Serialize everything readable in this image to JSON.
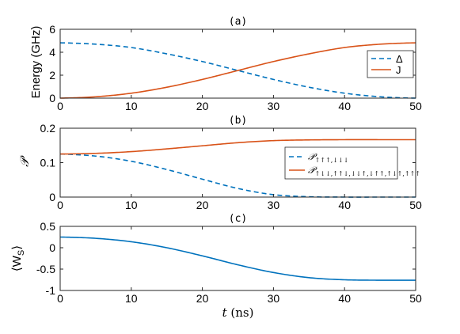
{
  "chart_data": [
    {
      "type": "line",
      "panel": "(a)",
      "title": "(a)",
      "ylabel": "Energy (GHz)",
      "xlim": [
        0,
        50
      ],
      "ylim": [
        0,
        6
      ],
      "xticks": [
        0,
        10,
        20,
        30,
        40,
        50
      ],
      "yticks": [
        0,
        2,
        4,
        6
      ],
      "legend_position": "bottom-right",
      "colors": {
        "blue": "#0072BD",
        "orange": "#D95319"
      },
      "series": [
        {
          "name": "Δ",
          "style": "dashed",
          "color": "#0072BD",
          "x": [
            0,
            5,
            10,
            15,
            20,
            25,
            30,
            35,
            40,
            45,
            50
          ],
          "y": [
            4.82,
            4.7,
            4.41,
            3.86,
            3.19,
            2.41,
            1.63,
            0.95,
            0.43,
            0.12,
            0.0
          ]
        },
        {
          "name": "J",
          "style": "solid",
          "color": "#D95319",
          "x": [
            0,
            5,
            10,
            15,
            20,
            25,
            30,
            35,
            40,
            45,
            50
          ],
          "y": [
            0.0,
            0.12,
            0.43,
            0.95,
            1.63,
            2.41,
            3.19,
            3.86,
            4.41,
            4.7,
            4.82
          ]
        }
      ]
    },
    {
      "type": "line",
      "panel": "(b)",
      "title": "(b)",
      "ylabel": "𝒫",
      "xlim": [
        0,
        50
      ],
      "ylim": [
        0,
        0.2
      ],
      "xticks": [
        0,
        10,
        20,
        30,
        40,
        50
      ],
      "yticks": [
        0,
        0.1,
        0.2
      ],
      "ytick_labels": [
        "0",
        "0.1",
        "0.2"
      ],
      "legend_position": "right",
      "series": [
        {
          "name": "𝒫↑↑↑,↓↓↓",
          "style": "dashed",
          "color": "#0072BD",
          "x": [
            0,
            5,
            10,
            15,
            20,
            25,
            30,
            35,
            40,
            45,
            50
          ],
          "y": [
            0.125,
            0.119,
            0.104,
            0.08,
            0.052,
            0.025,
            0.007,
            0.001,
            0.0,
            0.0,
            0.0
          ]
        },
        {
          "name": "𝒫↑↓↓,↑↑↓,↓↓↑,↓↑↑,↑↓↑,↑↑↑",
          "style": "solid",
          "color": "#D95319",
          "x": [
            0,
            5,
            10,
            15,
            20,
            25,
            30,
            35,
            40,
            45,
            50
          ],
          "y": [
            0.125,
            0.127,
            0.132,
            0.14,
            0.149,
            0.158,
            0.164,
            0.166,
            0.1667,
            0.1667,
            0.1667
          ]
        }
      ]
    },
    {
      "type": "line",
      "panel": "(c)",
      "title": "(c)",
      "ylabel": "⟨W",
      "ylabel_sub": "S",
      "ylabel_end": "⟩",
      "xlabel": "t (ns)",
      "xlim": [
        0,
        50
      ],
      "ylim": [
        -1,
        0.5
      ],
      "xticks": [
        0,
        10,
        20,
        30,
        40,
        50
      ],
      "yticks": [
        -1,
        -0.5,
        0,
        0.5
      ],
      "ytick_labels": [
        "-1",
        "-0.5",
        "0",
        "0.5"
      ],
      "series": [
        {
          "style": "solid",
          "color": "#0072BD",
          "x": [
            0,
            5,
            10,
            15,
            20,
            25,
            30,
            35,
            40,
            45,
            50
          ],
          "y": [
            0.25,
            0.22,
            0.14,
            0.0,
            -0.19,
            -0.4,
            -0.58,
            -0.7,
            -0.75,
            -0.76,
            -0.76
          ]
        }
      ]
    }
  ],
  "xlabel_italic": "t",
  "xlabel_rest": " (ns)"
}
